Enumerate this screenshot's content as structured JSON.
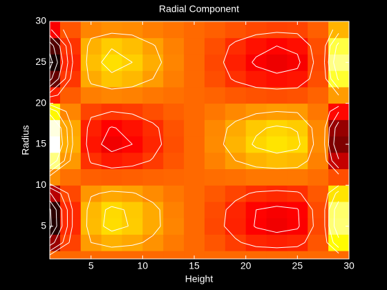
{
  "chart_data": {
    "type": "heatmap",
    "title": "Radial Component",
    "x_label": "Height",
    "y_label": "Radius",
    "x": [
      1,
      3,
      5,
      7,
      9,
      11,
      13,
      15,
      17,
      19,
      21,
      23,
      25,
      27,
      29
    ],
    "y": [
      1,
      3,
      5,
      7,
      9,
      11,
      13,
      15,
      17,
      19,
      21,
      23,
      25,
      27,
      29
    ],
    "z": [
      [
        0,
        0,
        0,
        0,
        0,
        0,
        0,
        0,
        0,
        0,
        0,
        0,
        0,
        0,
        0
      ],
      [
        -0.61,
        -0.12,
        0.15,
        0.21,
        0.18,
        0.12,
        0.05,
        0,
        -0.06,
        -0.13,
        -0.2,
        -0.22,
        -0.2,
        -0.06,
        0.43
      ],
      [
        -0.96,
        -0.19,
        0.24,
        0.34,
        0.29,
        0.19,
        0.08,
        0,
        -0.1,
        -0.21,
        -0.31,
        -0.35,
        -0.32,
        -0.1,
        0.67
      ],
      [
        -0.93,
        -0.19,
        0.23,
        0.33,
        0.28,
        0.19,
        0.07,
        0,
        -0.09,
        -0.2,
        -0.3,
        -0.33,
        -0.31,
        -0.09,
        0.65
      ],
      [
        -0.52,
        -0.1,
        0.13,
        0.18,
        0.16,
        0.1,
        0.04,
        0,
        -0.05,
        -0.11,
        -0.17,
        -0.19,
        -0.17,
        -0.05,
        0.36
      ],
      [
        0.11,
        0.02,
        -0.03,
        -0.04,
        -0.03,
        -0.02,
        -0.01,
        0,
        0.01,
        0.02,
        0.04,
        0.04,
        0.04,
        0.01,
        -0.08
      ],
      [
        0.69,
        0.14,
        -0.17,
        -0.24,
        -0.21,
        -0.14,
        -0.06,
        0,
        0.07,
        0.15,
        0.22,
        0.25,
        0.23,
        0.07,
        -0.48
      ],
      [
        0.99,
        0.2,
        -0.25,
        -0.35,
        -0.3,
        -0.2,
        -0.08,
        0,
        0.1,
        0.22,
        0.32,
        0.36,
        0.33,
        0.1,
        -0.69
      ],
      [
        0.88,
        0.18,
        -0.22,
        -0.31,
        -0.26,
        -0.18,
        -0.07,
        0,
        0.09,
        0.19,
        0.28,
        0.32,
        0.29,
        0.09,
        -0.62
      ],
      [
        0.42,
        0.08,
        -0.11,
        -0.15,
        -0.13,
        -0.08,
        -0.03,
        0,
        0.04,
        0.09,
        0.13,
        0.15,
        0.14,
        0.04,
        -0.29
      ],
      [
        -0.22,
        -0.04,
        0.06,
        0.08,
        0.07,
        0.04,
        0.02,
        0,
        -0.02,
        -0.05,
        -0.07,
        -0.08,
        -0.07,
        -0.02,
        0.15
      ],
      [
        -0.76,
        -0.15,
        0.19,
        0.27,
        0.23,
        0.15,
        0.06,
        0,
        -0.08,
        -0.17,
        -0.24,
        -0.27,
        -0.25,
        -0.08,
        0.53
      ],
      [
        -1,
        -0.2,
        0.25,
        0.35,
        0.3,
        0.2,
        0.08,
        0,
        -0.1,
        -0.22,
        -0.32,
        -0.36,
        -0.33,
        -0.1,
        0.7
      ],
      [
        -0.82,
        -0.16,
        0.21,
        0.29,
        0.25,
        0.16,
        0.07,
        0,
        -0.08,
        -0.18,
        -0.26,
        -0.3,
        -0.27,
        -0.08,
        0.57
      ],
      [
        -0.32,
        -0.06,
        0.08,
        0.11,
        0.1,
        0.06,
        0.03,
        0,
        -0.03,
        -0.07,
        -0.1,
        -0.12,
        -0.11,
        -0.03,
        0.22
      ]
    ],
    "colormap": "hot",
    "clim": [
      -1.06,
      0.94
    ],
    "contour_levels": [
      -0.9,
      -0.7,
      -0.5,
      -0.3,
      -0.15,
      0.15,
      0.3,
      0.5
    ],
    "contour_color": "#ffffff",
    "xlim": [
      1,
      30
    ],
    "ylim": [
      1,
      30
    ],
    "xticks": [
      5,
      10,
      15,
      20,
      25,
      30
    ],
    "yticks": [
      5,
      10,
      15,
      20,
      25,
      30
    ]
  }
}
